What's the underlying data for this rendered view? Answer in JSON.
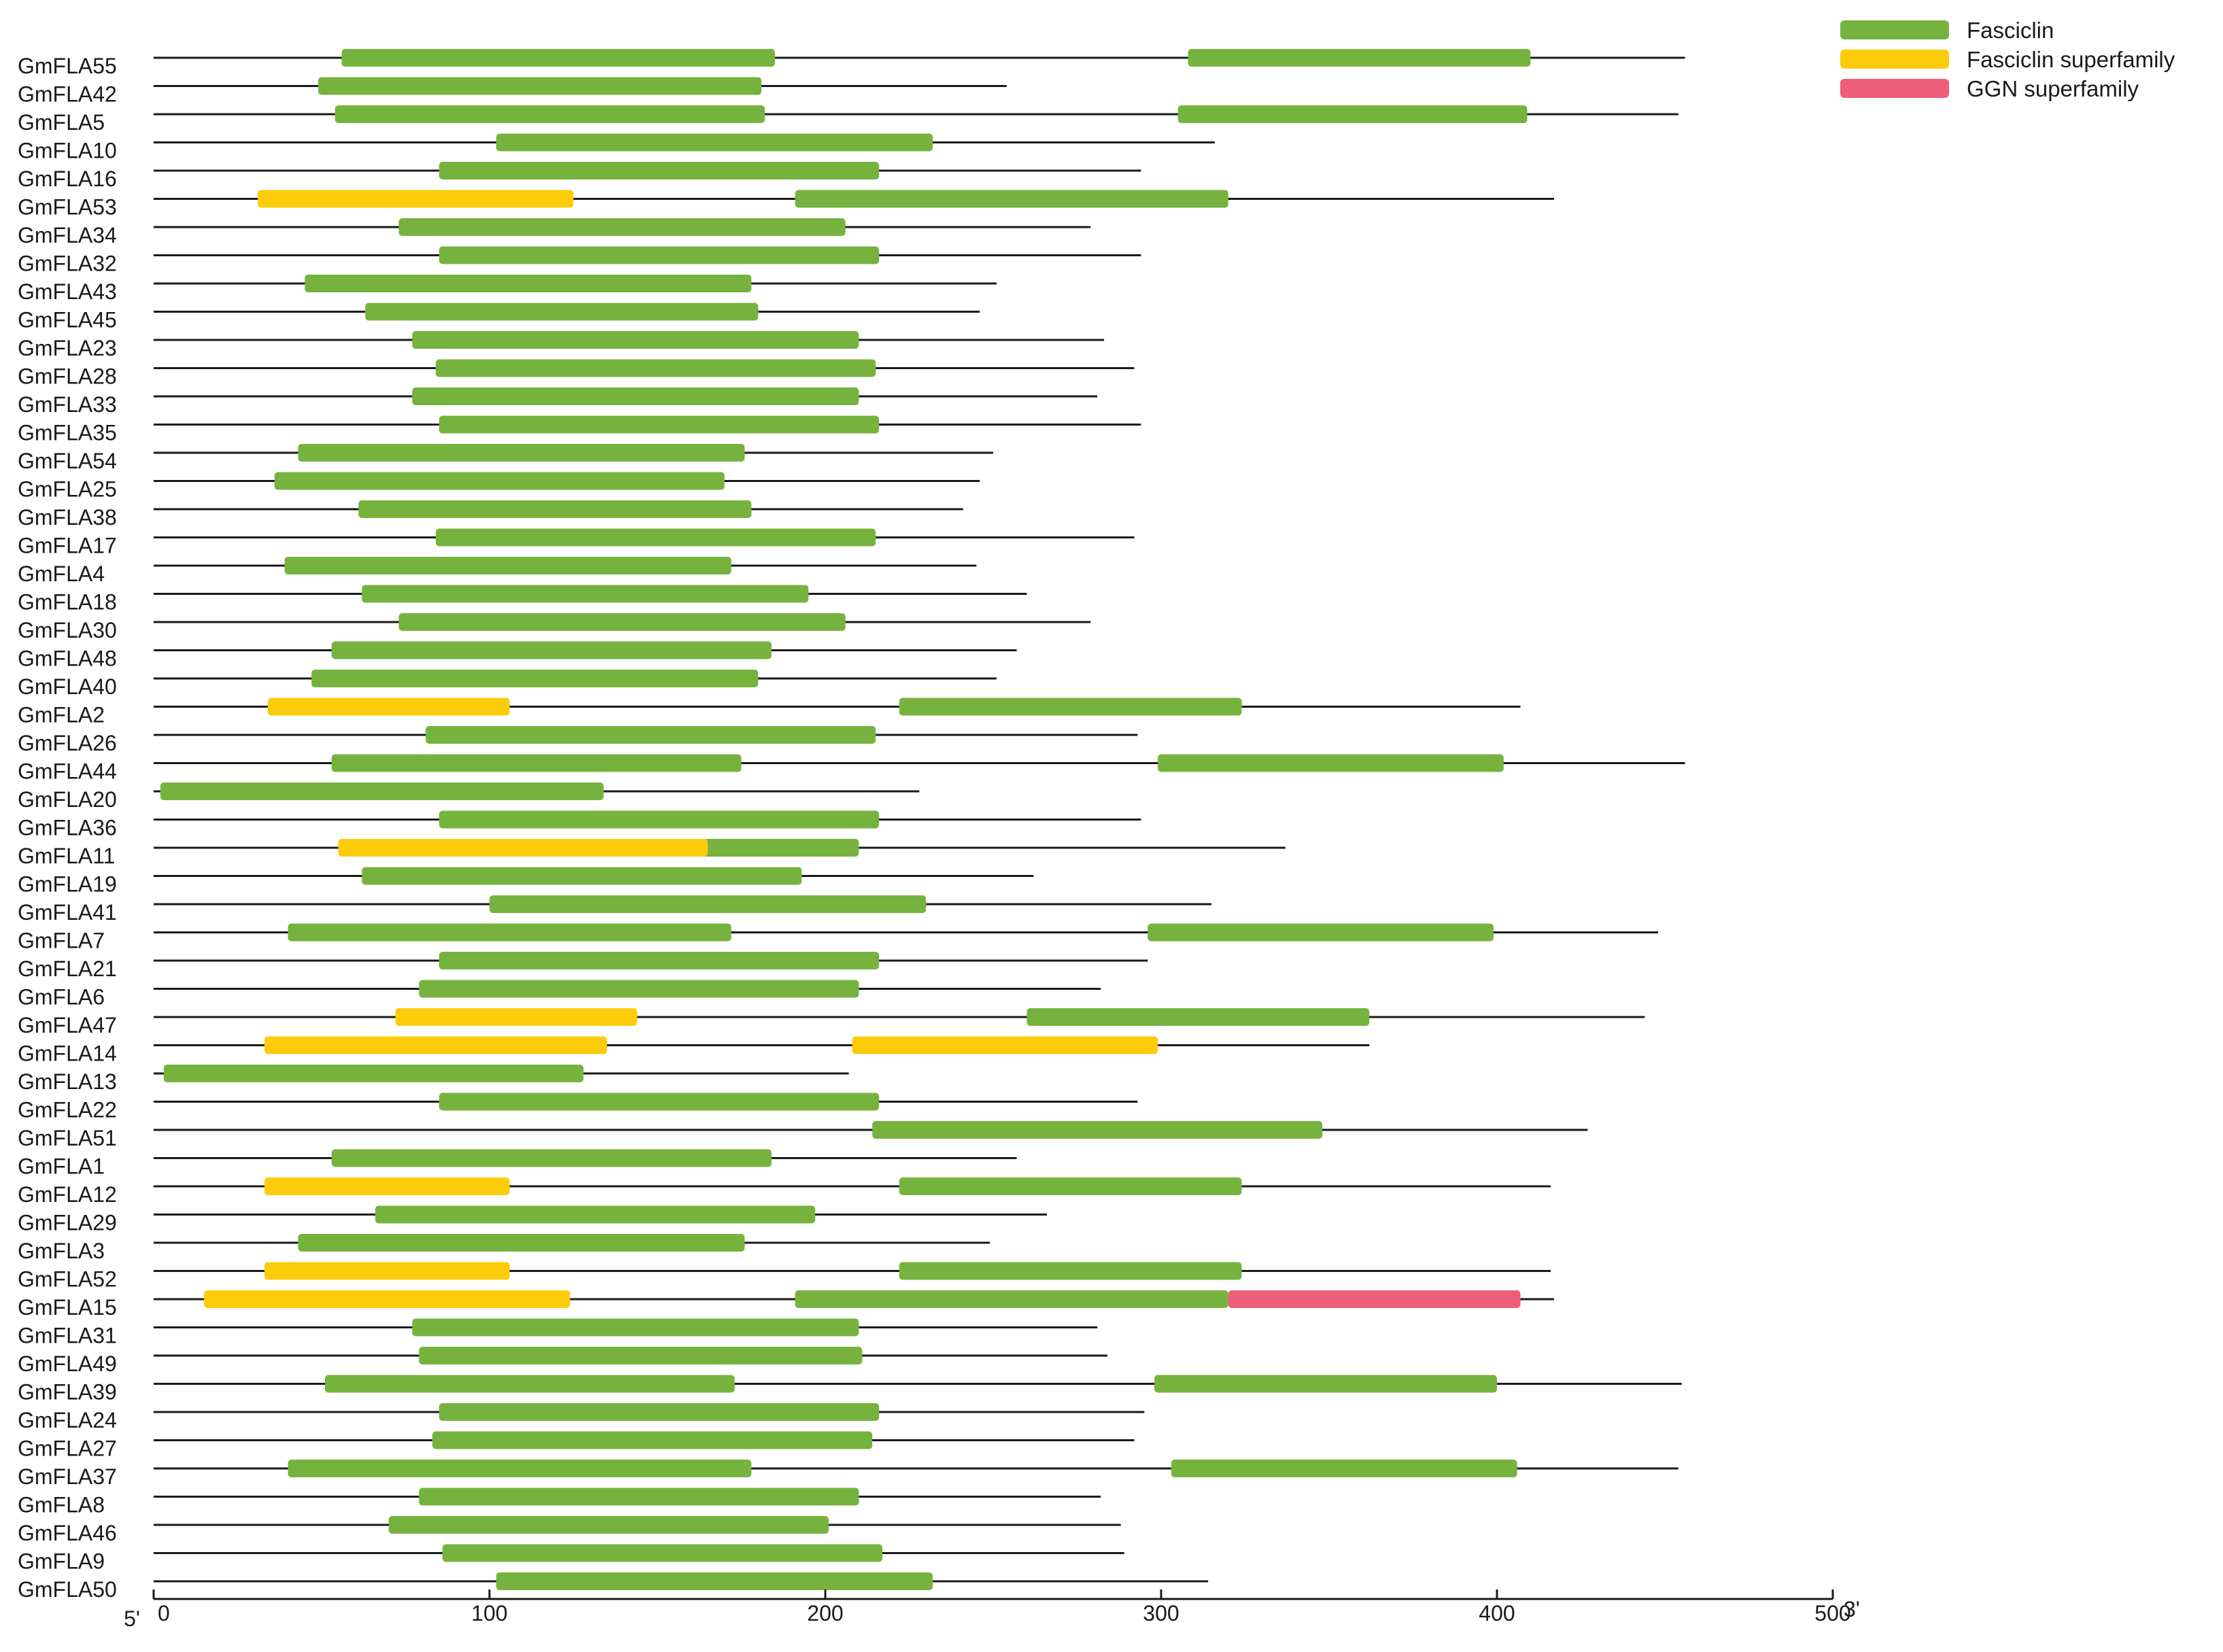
{
  "legend": [
    {
      "label": "Fasciclin",
      "color": "#76b33e"
    },
    {
      "label": "Fasciclin superfamily",
      "color": "#fccc0a"
    },
    {
      "label": "GGN superfamily",
      "color": "#ee5d7c"
    }
  ],
  "axis": {
    "min": 0,
    "max": 500,
    "ticks": [
      0,
      100,
      200,
      300,
      400,
      500
    ],
    "left_end_label": "5'",
    "right_end_label": "3'"
  },
  "chart_data": {
    "type": "domain-diagram",
    "xlim": [
      0,
      500
    ],
    "proteins": [
      {
        "name": "GmFLA55",
        "length": 456,
        "domains": [
          {
            "type": "Fasciclin",
            "start": 56,
            "end": 185
          },
          {
            "type": "Fasciclin",
            "start": 308,
            "end": 410
          }
        ]
      },
      {
        "name": "GmFLA42",
        "length": 254,
        "domains": [
          {
            "type": "Fasciclin",
            "start": 49,
            "end": 181
          }
        ]
      },
      {
        "name": "GmFLA5",
        "length": 454,
        "domains": [
          {
            "type": "Fasciclin",
            "start": 54,
            "end": 182
          },
          {
            "type": "Fasciclin",
            "start": 305,
            "end": 409
          }
        ]
      },
      {
        "name": "GmFLA10",
        "length": 316,
        "domains": [
          {
            "type": "Fasciclin",
            "start": 102,
            "end": 232
          }
        ]
      },
      {
        "name": "GmFLA16",
        "length": 294,
        "domains": [
          {
            "type": "Fasciclin",
            "start": 85,
            "end": 216
          }
        ]
      },
      {
        "name": "GmFLA53",
        "length": 417,
        "domains": [
          {
            "type": "Fasciclin superfamily",
            "start": 31,
            "end": 125
          },
          {
            "type": "Fasciclin",
            "start": 191,
            "end": 320
          }
        ]
      },
      {
        "name": "GmFLA34",
        "length": 279,
        "domains": [
          {
            "type": "Fasciclin",
            "start": 73,
            "end": 206
          }
        ]
      },
      {
        "name": "GmFLA32",
        "length": 294,
        "domains": [
          {
            "type": "Fasciclin",
            "start": 85,
            "end": 216
          }
        ]
      },
      {
        "name": "GmFLA43",
        "length": 251,
        "domains": [
          {
            "type": "Fasciclin",
            "start": 45,
            "end": 178
          }
        ]
      },
      {
        "name": "GmFLA45",
        "length": 246,
        "domains": [
          {
            "type": "Fasciclin",
            "start": 63,
            "end": 180
          }
        ]
      },
      {
        "name": "GmFLA23",
        "length": 283,
        "domains": [
          {
            "type": "Fasciclin",
            "start": 77,
            "end": 210
          }
        ]
      },
      {
        "name": "GmFLA28",
        "length": 292,
        "domains": [
          {
            "type": "Fasciclin",
            "start": 84,
            "end": 215
          }
        ]
      },
      {
        "name": "GmFLA33",
        "length": 281,
        "domains": [
          {
            "type": "Fasciclin",
            "start": 77,
            "end": 210
          }
        ]
      },
      {
        "name": "GmFLA35",
        "length": 294,
        "domains": [
          {
            "type": "Fasciclin",
            "start": 85,
            "end": 216
          }
        ]
      },
      {
        "name": "GmFLA54",
        "length": 250,
        "domains": [
          {
            "type": "Fasciclin",
            "start": 43,
            "end": 176
          }
        ]
      },
      {
        "name": "GmFLA25",
        "length": 246,
        "domains": [
          {
            "type": "Fasciclin",
            "start": 36,
            "end": 170
          }
        ]
      },
      {
        "name": "GmFLA38",
        "length": 241,
        "domains": [
          {
            "type": "Fasciclin",
            "start": 61,
            "end": 178
          }
        ]
      },
      {
        "name": "GmFLA17",
        "length": 292,
        "domains": [
          {
            "type": "Fasciclin",
            "start": 84,
            "end": 215
          }
        ]
      },
      {
        "name": "GmFLA4",
        "length": 245,
        "domains": [
          {
            "type": "Fasciclin",
            "start": 39,
            "end": 172
          }
        ]
      },
      {
        "name": "GmFLA18",
        "length": 260,
        "domains": [
          {
            "type": "Fasciclin",
            "start": 62,
            "end": 195
          }
        ]
      },
      {
        "name": "GmFLA30",
        "length": 279,
        "domains": [
          {
            "type": "Fasciclin",
            "start": 73,
            "end": 206
          }
        ]
      },
      {
        "name": "GmFLA48",
        "length": 257,
        "domains": [
          {
            "type": "Fasciclin",
            "start": 53,
            "end": 184
          }
        ]
      },
      {
        "name": "GmFLA40",
        "length": 251,
        "domains": [
          {
            "type": "Fasciclin",
            "start": 47,
            "end": 180
          }
        ]
      },
      {
        "name": "GmFLA2",
        "length": 407,
        "domains": [
          {
            "type": "Fasciclin superfamily",
            "start": 34,
            "end": 106
          },
          {
            "type": "Fasciclin",
            "start": 222,
            "end": 324
          }
        ]
      },
      {
        "name": "GmFLA26",
        "length": 293,
        "domains": [
          {
            "type": "Fasciclin",
            "start": 81,
            "end": 215
          }
        ]
      },
      {
        "name": "GmFLA44",
        "length": 456,
        "domains": [
          {
            "type": "Fasciclin",
            "start": 53,
            "end": 175
          },
          {
            "type": "Fasciclin",
            "start": 299,
            "end": 402
          }
        ]
      },
      {
        "name": "GmFLA20",
        "length": 228,
        "domains": [
          {
            "type": "Fasciclin",
            "start": 2,
            "end": 134
          }
        ]
      },
      {
        "name": "GmFLA36",
        "length": 294,
        "domains": [
          {
            "type": "Fasciclin",
            "start": 85,
            "end": 216
          }
        ]
      },
      {
        "name": "GmFLA11",
        "length": 337,
        "domains": [
          {
            "type": "Fasciclin",
            "start": 55,
            "end": 210
          },
          {
            "type": "Fasciclin superfamily",
            "start": 55,
            "end": 165
          }
        ]
      },
      {
        "name": "GmFLA19",
        "length": 262,
        "domains": [
          {
            "type": "Fasciclin",
            "start": 62,
            "end": 193
          }
        ]
      },
      {
        "name": "GmFLA41",
        "length": 315,
        "domains": [
          {
            "type": "Fasciclin",
            "start": 100,
            "end": 230
          }
        ]
      },
      {
        "name": "GmFLA7",
        "length": 448,
        "domains": [
          {
            "type": "Fasciclin",
            "start": 40,
            "end": 172
          },
          {
            "type": "Fasciclin",
            "start": 296,
            "end": 399
          }
        ]
      },
      {
        "name": "GmFLA21",
        "length": 296,
        "domains": [
          {
            "type": "Fasciclin",
            "start": 85,
            "end": 216
          }
        ]
      },
      {
        "name": "GmFLA6",
        "length": 282,
        "domains": [
          {
            "type": "Fasciclin",
            "start": 79,
            "end": 210
          }
        ]
      },
      {
        "name": "GmFLA47",
        "length": 444,
        "domains": [
          {
            "type": "Fasciclin superfamily",
            "start": 72,
            "end": 144
          },
          {
            "type": "Fasciclin",
            "start": 260,
            "end": 362
          }
        ]
      },
      {
        "name": "GmFLA14",
        "length": 362,
        "domains": [
          {
            "type": "Fasciclin superfamily",
            "start": 33,
            "end": 135
          },
          {
            "type": "Fasciclin superfamily",
            "start": 208,
            "end": 299
          }
        ]
      },
      {
        "name": "GmFLA13",
        "length": 207,
        "domains": [
          {
            "type": "Fasciclin",
            "start": 3,
            "end": 128
          }
        ]
      },
      {
        "name": "GmFLA22",
        "length": 293,
        "domains": [
          {
            "type": "Fasciclin",
            "start": 85,
            "end": 216
          }
        ]
      },
      {
        "name": "GmFLA51",
        "length": 427,
        "domains": [
          {
            "type": "Fasciclin",
            "start": 214,
            "end": 348
          }
        ]
      },
      {
        "name": "GmFLA1",
        "length": 257,
        "domains": [
          {
            "type": "Fasciclin",
            "start": 53,
            "end": 184
          }
        ]
      },
      {
        "name": "GmFLA12",
        "length": 416,
        "domains": [
          {
            "type": "Fasciclin superfamily",
            "start": 33,
            "end": 106
          },
          {
            "type": "Fasciclin",
            "start": 222,
            "end": 324
          }
        ]
      },
      {
        "name": "GmFLA29",
        "length": 266,
        "domains": [
          {
            "type": "Fasciclin",
            "start": 66,
            "end": 197
          }
        ]
      },
      {
        "name": "GmFLA3",
        "length": 249,
        "domains": [
          {
            "type": "Fasciclin",
            "start": 43,
            "end": 176
          }
        ]
      },
      {
        "name": "GmFLA52",
        "length": 416,
        "domains": [
          {
            "type": "Fasciclin superfamily",
            "start": 33,
            "end": 106
          },
          {
            "type": "Fasciclin",
            "start": 222,
            "end": 324
          }
        ]
      },
      {
        "name": "GmFLA15",
        "length": 417,
        "domains": [
          {
            "type": "Fasciclin superfamily",
            "start": 15,
            "end": 124
          },
          {
            "type": "Fasciclin",
            "start": 191,
            "end": 320
          },
          {
            "type": "GGN superfamily",
            "start": 320,
            "end": 407
          }
        ]
      },
      {
        "name": "GmFLA31",
        "length": 281,
        "domains": [
          {
            "type": "Fasciclin",
            "start": 77,
            "end": 210
          }
        ]
      },
      {
        "name": "GmFLA49",
        "length": 284,
        "domains": [
          {
            "type": "Fasciclin",
            "start": 79,
            "end": 211
          }
        ]
      },
      {
        "name": "GmFLA39",
        "length": 455,
        "domains": [
          {
            "type": "Fasciclin",
            "start": 51,
            "end": 173
          },
          {
            "type": "Fasciclin",
            "start": 298,
            "end": 400
          }
        ]
      },
      {
        "name": "GmFLA24",
        "length": 295,
        "domains": [
          {
            "type": "Fasciclin",
            "start": 85,
            "end": 216
          }
        ]
      },
      {
        "name": "GmFLA27",
        "length": 292,
        "domains": [
          {
            "type": "Fasciclin",
            "start": 83,
            "end": 214
          }
        ]
      },
      {
        "name": "GmFLA37",
        "length": 454,
        "domains": [
          {
            "type": "Fasciclin",
            "start": 40,
            "end": 178
          },
          {
            "type": "Fasciclin",
            "start": 303,
            "end": 406
          }
        ]
      },
      {
        "name": "GmFLA8",
        "length": 282,
        "domains": [
          {
            "type": "Fasciclin",
            "start": 79,
            "end": 210
          }
        ]
      },
      {
        "name": "GmFLA46",
        "length": 288,
        "domains": [
          {
            "type": "Fasciclin",
            "start": 70,
            "end": 201
          }
        ]
      },
      {
        "name": "GmFLA9",
        "length": 289,
        "domains": [
          {
            "type": "Fasciclin",
            "start": 86,
            "end": 217
          }
        ]
      },
      {
        "name": "GmFLA50",
        "length": 314,
        "domains": [
          {
            "type": "Fasciclin",
            "start": 102,
            "end": 232
          }
        ]
      }
    ]
  }
}
